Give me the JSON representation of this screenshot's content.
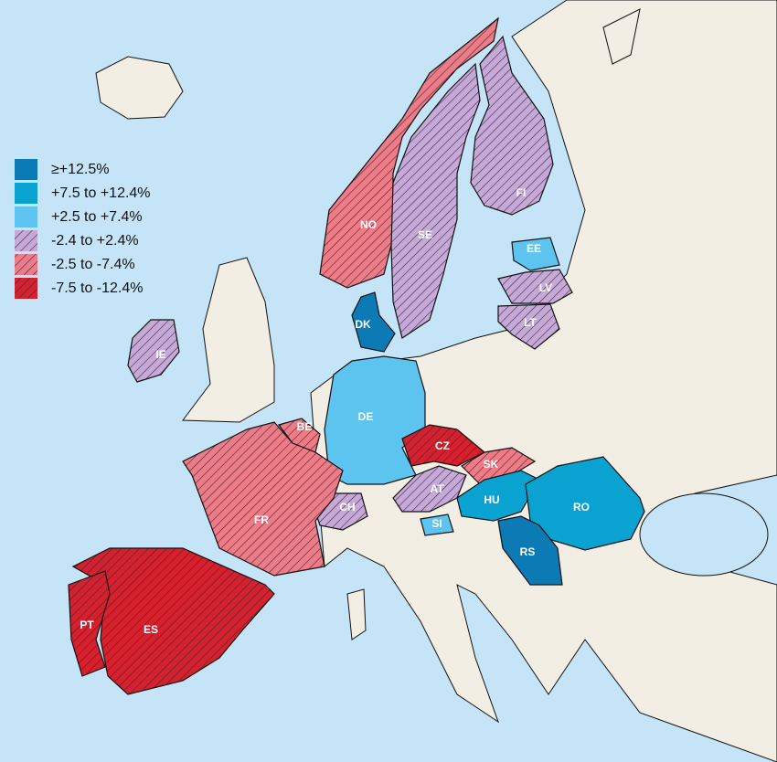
{
  "legend": [
    {
      "label": "≥+12.5%",
      "color": "#0b7ab5",
      "hatched": false
    },
    {
      "label": "+7.5 to +12.4%",
      "color": "#0aa3d1",
      "hatched": false
    },
    {
      "label": "+2.5 to +7.4%",
      "color": "#5cc4ef",
      "hatched": false
    },
    {
      "label": "-2.4 to +2.4%",
      "color": "#c6a9d8",
      "hatched": true
    },
    {
      "label": "-2.5 to -7.4%",
      "color": "#ee7b85",
      "hatched": true
    },
    {
      "label": "-7.5 to -12.4%",
      "color": "#d81f2b",
      "hatched": true
    }
  ],
  "countries": [
    {
      "code": "NO",
      "class": 4
    },
    {
      "code": "SE",
      "class": 3
    },
    {
      "code": "FI",
      "class": 3
    },
    {
      "code": "EE",
      "class": 2
    },
    {
      "code": "LV",
      "class": 3
    },
    {
      "code": "LT",
      "class": 3
    },
    {
      "code": "DK",
      "class": 0
    },
    {
      "code": "IE",
      "class": 3
    },
    {
      "code": "DE",
      "class": 2
    },
    {
      "code": "CZ",
      "class": 5
    },
    {
      "code": "SK",
      "class": 4
    },
    {
      "code": "AT",
      "class": 3
    },
    {
      "code": "CH",
      "class": 3
    },
    {
      "code": "SI",
      "class": 2
    },
    {
      "code": "HU",
      "class": 1
    },
    {
      "code": "RO",
      "class": 1
    },
    {
      "code": "RS",
      "class": 0
    },
    {
      "code": "BE",
      "class": 4
    },
    {
      "code": "FR",
      "class": 4
    },
    {
      "code": "ES",
      "class": 5
    },
    {
      "code": "PT",
      "class": 5
    }
  ]
}
